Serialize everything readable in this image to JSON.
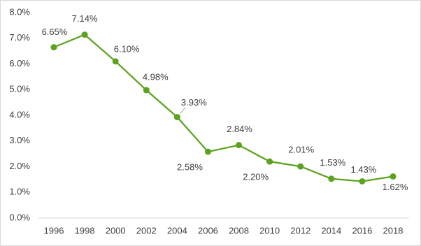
{
  "chart_data": {
    "type": "line",
    "x": [
      1996,
      1998,
      2000,
      2002,
      2004,
      2006,
      2008,
      2010,
      2012,
      2014,
      2016,
      2018
    ],
    "values": [
      6.65,
      7.14,
      6.1,
      4.98,
      3.93,
      2.58,
      2.84,
      2.2,
      2.01,
      1.53,
      1.43,
      1.62
    ],
    "value_labels": [
      "6.65%",
      "7.14%",
      "6.10%",
      "4.98%",
      "3.93%",
      "2.58%",
      "2.84%",
      "2.20%",
      "2.01%",
      "1.53%",
      "1.43%",
      "1.62%"
    ],
    "color": "#5ba31e",
    "xlim": [
      1996,
      2018
    ],
    "xticks": [
      1996,
      1998,
      2000,
      2002,
      2004,
      2006,
      2008,
      2010,
      2012,
      2014,
      2016,
      2018
    ],
    "ylim": [
      0,
      8
    ],
    "yticks": [
      {
        "value": 0,
        "label": "0.0%"
      },
      {
        "value": 1,
        "label": "1.0%"
      },
      {
        "value": 2,
        "label": "2.0%"
      },
      {
        "value": 3,
        "label": "3.0%"
      },
      {
        "value": 4,
        "label": "4.0%"
      },
      {
        "value": 5,
        "label": "5.0%"
      },
      {
        "value": 6,
        "label": "6.0%"
      },
      {
        "value": 7,
        "label": "7.0%"
      },
      {
        "value": 8,
        "label": "8.0%"
      }
    ],
    "grid": false
  }
}
